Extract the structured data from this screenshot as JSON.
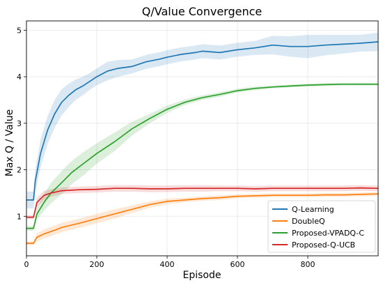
{
  "chart_data": {
    "type": "line",
    "title": "Q/Value Convergence",
    "xlabel": "Episode",
    "ylabel": "Max Q / Value",
    "xlim": [
      0,
      1000
    ],
    "ylim": [
      0.15,
      5.2
    ],
    "xticks": [
      0,
      200,
      400,
      600,
      800
    ],
    "yticks": [
      1,
      2,
      3,
      4,
      5
    ],
    "grid": true,
    "legend_position": "lower-right",
    "series": [
      {
        "name": "Q-Learning",
        "color": "#1f77b4",
        "x": [
          0,
          20,
          25,
          40,
          60,
          80,
          100,
          120,
          140,
          160,
          180,
          200,
          230,
          260,
          300,
          340,
          380,
          400,
          440,
          480,
          500,
          550,
          600,
          650,
          700,
          750,
          800,
          850,
          900,
          950,
          1000
        ],
        "y": [
          1.35,
          1.35,
          1.75,
          2.35,
          2.85,
          3.2,
          3.45,
          3.6,
          3.72,
          3.8,
          3.9,
          4.0,
          4.12,
          4.18,
          4.22,
          4.32,
          4.38,
          4.42,
          4.48,
          4.52,
          4.55,
          4.52,
          4.58,
          4.62,
          4.68,
          4.65,
          4.65,
          4.68,
          4.7,
          4.72,
          4.75
        ],
        "band": [
          0.18,
          0.18,
          0.25,
          0.3,
          0.3,
          0.3,
          0.28,
          0.25,
          0.22,
          0.2,
          0.18,
          0.18,
          0.2,
          0.18,
          0.15,
          0.15,
          0.15,
          0.15,
          0.15,
          0.15,
          0.15,
          0.15,
          0.15,
          0.15,
          0.2,
          0.22,
          0.25,
          0.22,
          0.2,
          0.18,
          0.2
        ]
      },
      {
        "name": "DoubleQ",
        "color": "#ff7f0e",
        "x": [
          0,
          20,
          30,
          50,
          80,
          100,
          150,
          200,
          250,
          300,
          350,
          400,
          450,
          500,
          550,
          600,
          650,
          700,
          750,
          800,
          850,
          900,
          950,
          1000
        ],
        "y": [
          0.42,
          0.42,
          0.55,
          0.62,
          0.7,
          0.76,
          0.85,
          0.95,
          1.05,
          1.15,
          1.25,
          1.32,
          1.35,
          1.38,
          1.4,
          1.43,
          1.44,
          1.45,
          1.45,
          1.45,
          1.46,
          1.46,
          1.47,
          1.48
        ],
        "band": [
          0.04,
          0.04,
          0.08,
          0.1,
          0.1,
          0.1,
          0.1,
          0.1,
          0.1,
          0.08,
          0.07,
          0.06,
          0.05,
          0.05,
          0.05,
          0.04,
          0.04,
          0.04,
          0.04,
          0.04,
          0.04,
          0.04,
          0.04,
          0.04
        ]
      },
      {
        "name": "Proposed-VPADQ-C",
        "color": "#2ca02c",
        "x": [
          0,
          20,
          30,
          50,
          70,
          100,
          130,
          160,
          200,
          250,
          300,
          350,
          400,
          450,
          500,
          550,
          600,
          650,
          700,
          750,
          800,
          850,
          900,
          950,
          1000
        ],
        "y": [
          0.74,
          0.74,
          1.05,
          1.3,
          1.5,
          1.72,
          1.95,
          2.12,
          2.35,
          2.6,
          2.88,
          3.1,
          3.3,
          3.45,
          3.55,
          3.62,
          3.7,
          3.75,
          3.78,
          3.8,
          3.82,
          3.83,
          3.84,
          3.84,
          3.84
        ],
        "band": [
          0.05,
          0.05,
          0.12,
          0.18,
          0.22,
          0.25,
          0.25,
          0.25,
          0.22,
          0.2,
          0.15,
          0.1,
          0.08,
          0.06,
          0.05,
          0.05,
          0.04,
          0.04,
          0.03,
          0.03,
          0.03,
          0.03,
          0.03,
          0.03,
          0.03
        ]
      },
      {
        "name": "Proposed-Q-UCB",
        "color": "#d62728",
        "x": [
          0,
          20,
          30,
          50,
          70,
          100,
          150,
          200,
          250,
          300,
          350,
          400,
          450,
          500,
          550,
          600,
          650,
          700,
          750,
          800,
          850,
          900,
          950,
          1000
        ],
        "y": [
          0.98,
          0.98,
          1.3,
          1.45,
          1.5,
          1.55,
          1.57,
          1.58,
          1.6,
          1.6,
          1.59,
          1.59,
          1.6,
          1.6,
          1.6,
          1.6,
          1.59,
          1.6,
          1.6,
          1.6,
          1.6,
          1.6,
          1.61,
          1.6
        ],
        "band": [
          0.04,
          0.04,
          0.1,
          0.1,
          0.08,
          0.07,
          0.07,
          0.07,
          0.07,
          0.07,
          0.07,
          0.07,
          0.07,
          0.07,
          0.06,
          0.06,
          0.06,
          0.06,
          0.06,
          0.06,
          0.06,
          0.06,
          0.06,
          0.06
        ]
      }
    ]
  }
}
